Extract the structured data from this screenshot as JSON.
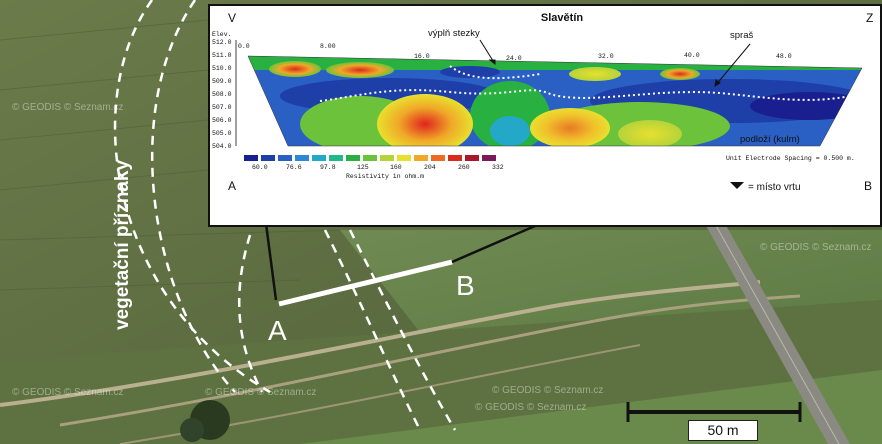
{
  "map": {
    "side_label": "vegetační příznaky",
    "endpoint_a": "A",
    "endpoint_b": "B",
    "scale_label": "50 m",
    "watermarks": [
      "© GEODIS © Seznam.cz",
      "© GEODIS © Seznam.cz",
      "© GEODIS © Seznam.cz",
      "© GEODIS © Seznam.cz",
      "© GEODIS © Seznam.cz",
      "© GEODIS © Seznam.cz"
    ]
  },
  "profile": {
    "title": "Slavětín",
    "corner_left": "V",
    "corner_right": "Z",
    "bottom_left": "A",
    "bottom_right": "B",
    "elev_label": "Elev.",
    "elev_ticks": [
      "512.0",
      "511.0",
      "510.0",
      "509.0",
      "508.0",
      "507.0",
      "506.0",
      "505.0",
      "504.0"
    ],
    "x_ticks": [
      "0.0",
      "8.00",
      "16.0",
      "24.0",
      "32.0",
      "40.0",
      "48.0"
    ],
    "annotations": {
      "fill": "výplň stezky",
      "loess": "spraš",
      "bedrock": "podloží (kulm)",
      "borehole": "= místo vrtu"
    },
    "electrode_spacing": "Unit Electrode Spacing = 0.500 m.",
    "colorbar_ticks": [
      "60.0",
      "76.6",
      "97.8",
      "125",
      "160",
      "204",
      "260",
      "332"
    ],
    "colorbar_title": "Resistivity in ohm.m",
    "colorbar_colors": [
      "#1a1f8f",
      "#1e3ea8",
      "#2a5fc4",
      "#2f86d6",
      "#24a8c8",
      "#1fb98a",
      "#28b040",
      "#6cc23a",
      "#b5d33a",
      "#e8e02e",
      "#f0a828",
      "#ee6a24",
      "#d92a1e",
      "#a8182a",
      "#7a1a5a"
    ]
  }
}
